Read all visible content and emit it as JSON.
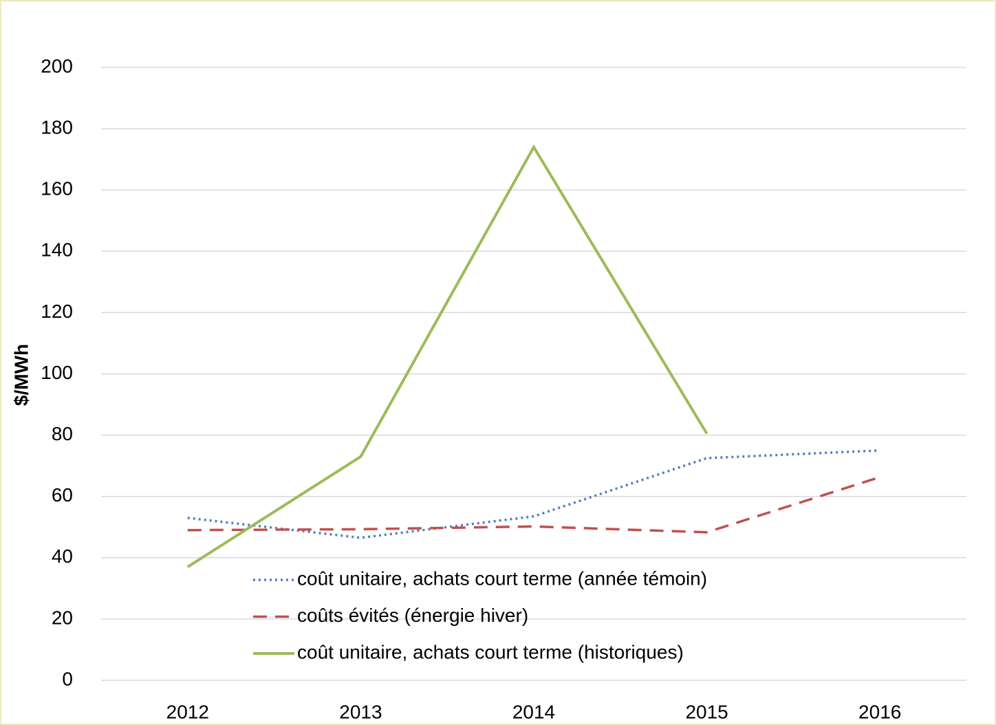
{
  "chart_data": {
    "type": "line",
    "y_label": "$/MWh",
    "categories": [
      "2012",
      "2013",
      "2014",
      "2015",
      "2016"
    ],
    "series": [
      {
        "name": "coût unitaire, achats court terme (année témoin)",
        "color": "#4f81bd",
        "style": "dotted",
        "values": [
          53,
          46.5,
          53.5,
          72.5,
          75
        ]
      },
      {
        "name": "coûts évités (énergie hiver)",
        "color": "#c0504d",
        "style": "dashed",
        "values": [
          49,
          49.3,
          50.2,
          48.3,
          66.3
        ]
      },
      {
        "name": "coût unitaire, achats court terme (historiques)",
        "color": "#9bbb59",
        "style": "solid",
        "values": [
          37,
          73,
          174,
          80.5,
          null
        ]
      }
    ],
    "ylim": [
      0,
      200
    ],
    "yticks": [
      0,
      20,
      40,
      60,
      80,
      100,
      120,
      140,
      160,
      180,
      200
    ],
    "grid": true
  }
}
